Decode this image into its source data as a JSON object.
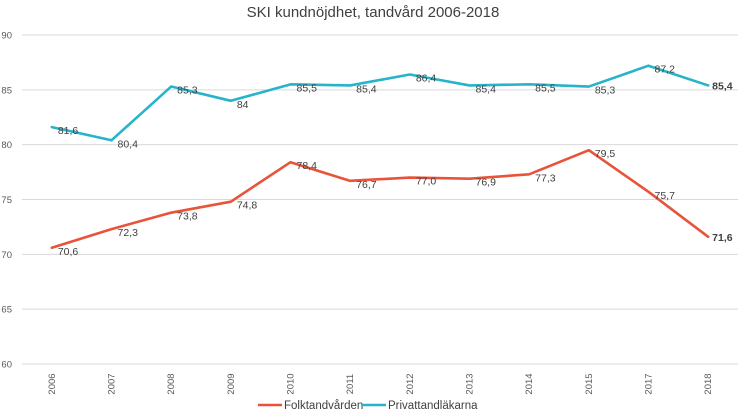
{
  "chart_data": {
    "type": "line",
    "title": "SKI kundnöjdhet, tandvård 2006-2018",
    "xlabel": "",
    "ylabel": "",
    "categories": [
      "2006",
      "2007",
      "2008",
      "2009",
      "2010",
      "2011",
      "2012",
      "2013",
      "2014",
      "2015",
      "2017",
      "2018"
    ],
    "ylim": [
      60,
      90
    ],
    "yticks": [
      60,
      65,
      70,
      75,
      80,
      85,
      90
    ],
    "grid": true,
    "legend_position": "bottom",
    "series": [
      {
        "name": "Folktandvården",
        "color": "#e8533a",
        "values": [
          70.6,
          72.3,
          73.8,
          74.8,
          78.4,
          76.7,
          77.0,
          76.9,
          77.3,
          79.5,
          75.7,
          71.6
        ],
        "labels": [
          "70,6",
          "72,3",
          "73,8",
          "74,8",
          "78,4",
          "76,7",
          "77,0",
          "76,9",
          "77,3",
          "79,5",
          "75,7",
          "71,6"
        ]
      },
      {
        "name": "Privattandläkarna",
        "color": "#27b3c9",
        "values": [
          81.6,
          80.4,
          85.3,
          84.0,
          85.5,
          85.4,
          86.4,
          85.4,
          85.5,
          85.3,
          87.2,
          85.4
        ],
        "labels": [
          "81,6",
          "80,4",
          "85,3",
          "84",
          "85,5",
          "85,4",
          "86,4",
          "85,4",
          "85,5",
          "85,3",
          "87,2",
          "85,4"
        ]
      }
    ]
  }
}
